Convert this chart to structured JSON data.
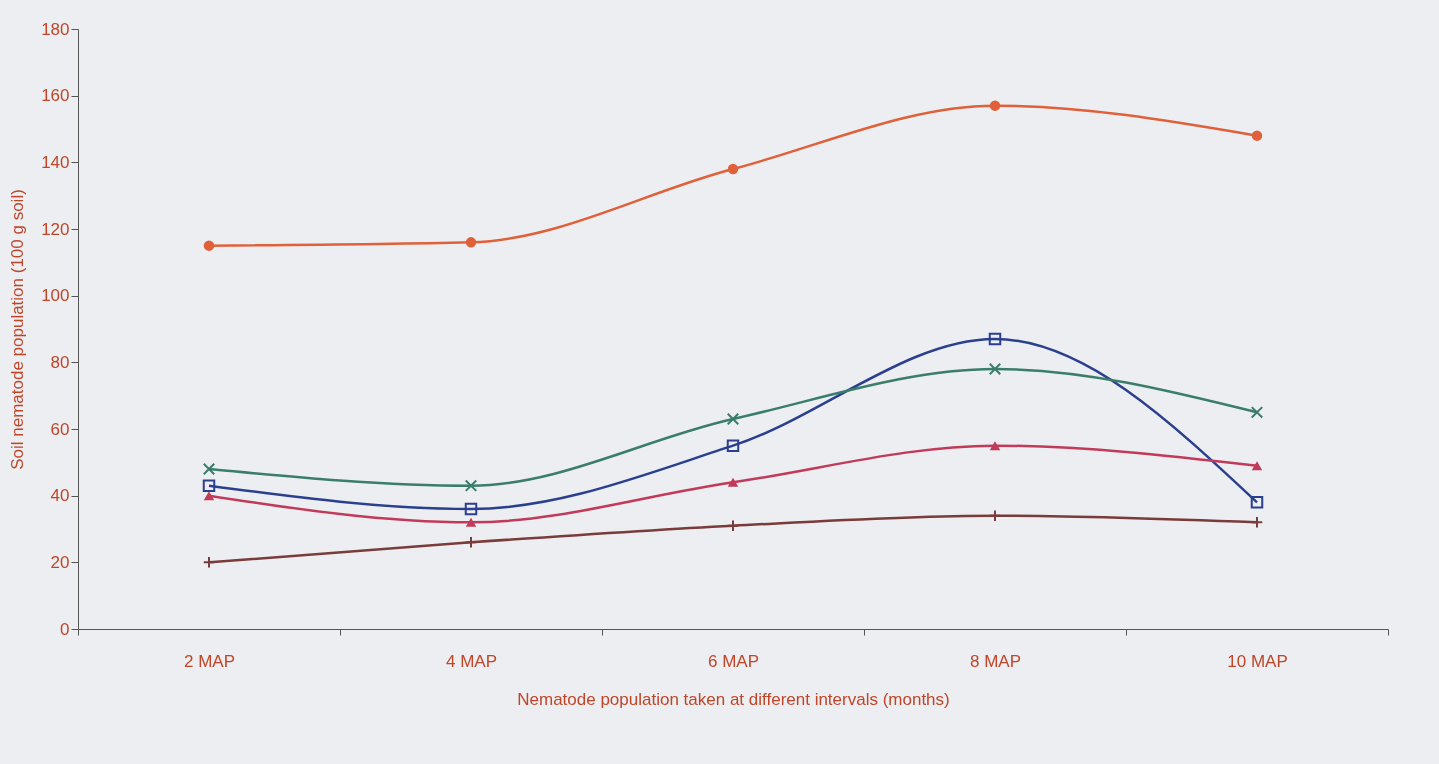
{
  "chart_data": {
    "type": "line",
    "xlabel": "Nematode population taken at different intervals (months)",
    "ylabel": "Soil nematode population (100 g soil)",
    "categories": [
      "2 MAP",
      "4 MAP",
      "6 MAP",
      "8 MAP",
      "10 MAP"
    ],
    "series": [
      {
        "color": "#e0603a",
        "marker": "circle",
        "values": [
          115,
          116,
          138,
          157,
          148
        ]
      },
      {
        "color": "#2b3f8f",
        "marker": "square",
        "values": [
          43,
          36,
          55,
          87,
          38
        ]
      },
      {
        "color": "#3a7d6a",
        "marker": "cross",
        "values": [
          48,
          43,
          63,
          78,
          65
        ]
      },
      {
        "color": "#c23a5a",
        "marker": "triangle",
        "values": [
          40,
          32,
          44,
          55,
          49
        ]
      },
      {
        "color": "#7a3b3b",
        "marker": "plus",
        "values": [
          20,
          26,
          31,
          34,
          32
        ]
      }
    ],
    "ylim": [
      0,
      180
    ],
    "yticks": [
      0,
      20,
      40,
      60,
      80,
      100,
      120,
      140,
      160,
      180
    ]
  }
}
